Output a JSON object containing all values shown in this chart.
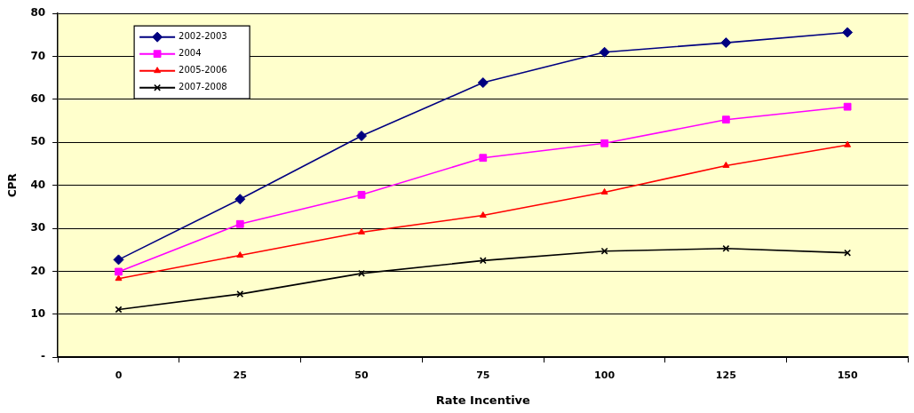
{
  "chart_data": {
    "type": "line",
    "xlabel": "Rate Incentive",
    "ylabel": "CPR",
    "categories": [
      "0",
      "25",
      "50",
      "75",
      "100",
      "125",
      "150"
    ],
    "ylim": [
      0,
      80
    ],
    "yticks": [
      {
        "value": 0,
        "label": "-"
      },
      10,
      20,
      30,
      40,
      50,
      60,
      70,
      80
    ],
    "grid": "y",
    "legend": "top left",
    "line_style": "solid",
    "series": [
      {
        "name": "2002-2003",
        "color": "#000080",
        "marker": "diamond",
        "values": [
          22.7,
          36.8,
          51.5,
          63.9,
          71,
          73.2,
          75.6
        ]
      },
      {
        "name": "2004",
        "color": "#ff00ff",
        "marker": "square",
        "values": [
          19.9,
          31,
          37.8,
          46.4,
          49.8,
          55.3,
          58.3
        ]
      },
      {
        "name": "2005-2006",
        "color": "#ff0000",
        "marker": "triangle",
        "values": [
          18.3,
          23.7,
          29.1,
          33,
          38.4,
          44.6,
          49.4
        ]
      },
      {
        "name": "2007-2008",
        "color": "#000000",
        "marker": "cross",
        "values": [
          11.1,
          14.7,
          19.5,
          22.5,
          24.7,
          25.3,
          24.3
        ]
      }
    ]
  }
}
